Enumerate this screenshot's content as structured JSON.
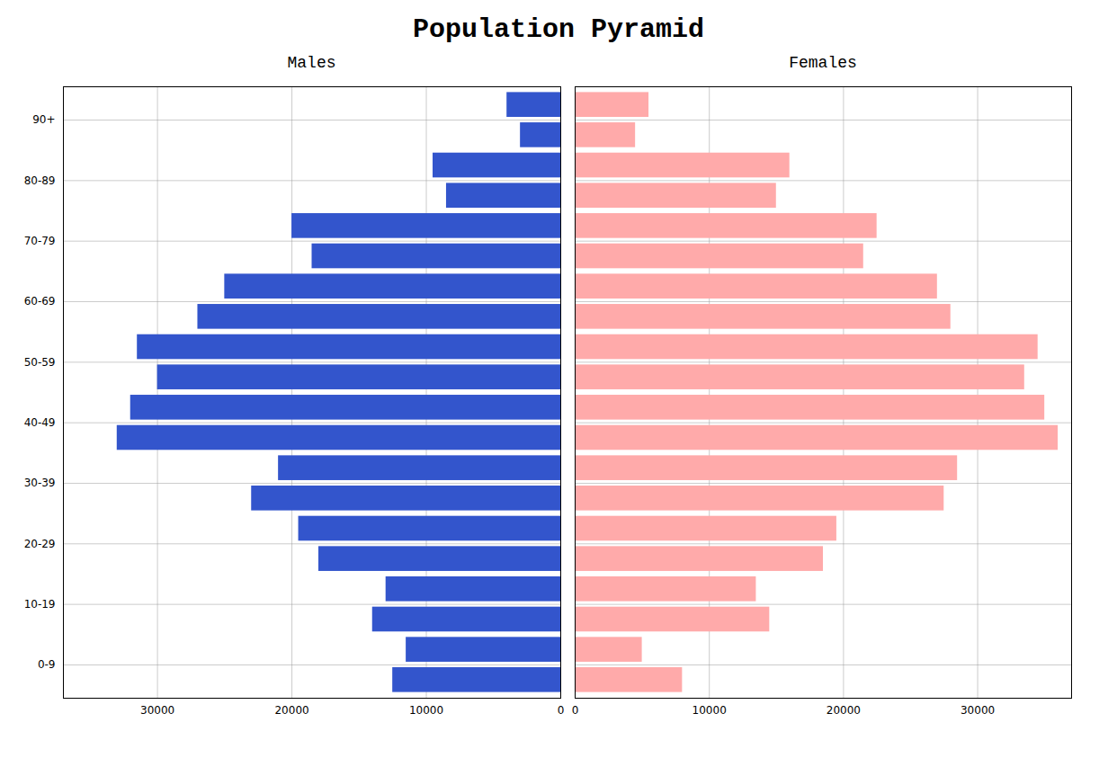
{
  "title": "Population Pyramid",
  "chart_data": [
    {
      "type": "bar",
      "orientation": "horizontal",
      "title": "Males",
      "categories": [
        "0-9",
        "10-19",
        "20-29",
        "30-39",
        "40-49",
        "50-59",
        "60-69",
        "70-79",
        "80-89",
        "90+"
      ],
      "series": [
        {
          "values": [
            11500,
            13000,
            19500,
            21000,
            32000,
            31500,
            25000,
            20000,
            9500,
            4000
          ]
        },
        {
          "values": [
            12500,
            14000,
            18000,
            23000,
            33000,
            30000,
            27000,
            18500,
            8500,
            3000
          ]
        }
      ],
      "color": "#3355cc",
      "xlim": [
        37000,
        0
      ],
      "xticks": [
        0,
        10000,
        20000,
        30000
      ],
      "grid": true
    },
    {
      "type": "bar",
      "orientation": "horizontal",
      "title": "Females",
      "categories": [
        "0-9",
        "10-19",
        "20-29",
        "30-39",
        "40-49",
        "50-59",
        "60-69",
        "70-79",
        "80-89",
        "90+"
      ],
      "series": [
        {
          "values": [
            5000,
            13500,
            19500,
            28500,
            35000,
            34500,
            27000,
            22500,
            16000,
            5500
          ]
        },
        {
          "values": [
            8000,
            14500,
            18500,
            27500,
            36000,
            33500,
            28000,
            21500,
            15000,
            4500
          ]
        }
      ],
      "color": "#ffaaaa",
      "xlim": [
        0,
        37000
      ],
      "xticks": [
        0,
        10000,
        20000,
        30000
      ],
      "grid": true,
      "tick_labels": "x"
    }
  ]
}
